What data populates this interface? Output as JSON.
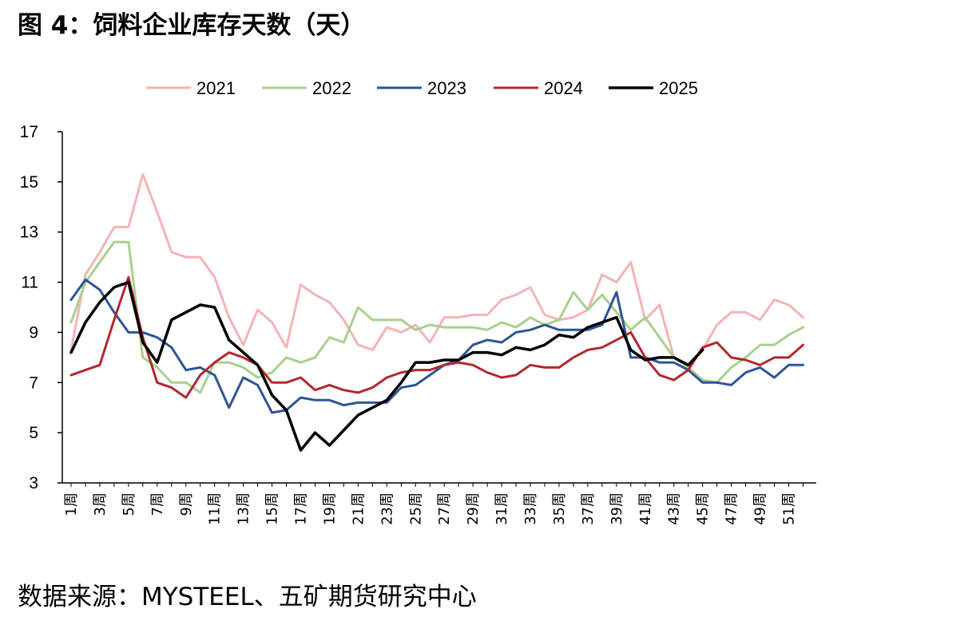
{
  "title": "图 4：饲料企业库存天数（天）",
  "source": "数据来源：MYSTEEL、五矿期货研究中心",
  "chart_data": {
    "type": "line",
    "ylim": [
      3,
      17
    ],
    "yticks": [
      "3",
      "5",
      "7",
      "9",
      "11",
      "13",
      "15",
      "17"
    ],
    "x": [
      1,
      2,
      3,
      4,
      5,
      6,
      7,
      8,
      9,
      10,
      11,
      12,
      13,
      14,
      15,
      16,
      17,
      18,
      19,
      20,
      21,
      22,
      23,
      24,
      25,
      26,
      27,
      28,
      29,
      30,
      31,
      32,
      33,
      34,
      35,
      36,
      37,
      38,
      39,
      40,
      41,
      42,
      43,
      44,
      45,
      46,
      47,
      48,
      49,
      50,
      51,
      52
    ],
    "xtick_labels": [
      "1周",
      "3周",
      "5周",
      "7周",
      "9周",
      "11周",
      "13周",
      "15周",
      "17周",
      "19周",
      "21周",
      "23周",
      "25周",
      "27周",
      "29周",
      "31周",
      "33周",
      "35周",
      "37周",
      "39周",
      "41周",
      "43周",
      "45周",
      "47周",
      "49周",
      "51周"
    ],
    "legend_position": "top",
    "grid": false,
    "series": [
      {
        "name": "2021",
        "color": "#f4b3b6",
        "width": 3,
        "values": [
          8.3,
          11.3,
          12.2,
          13.2,
          13.2,
          15.3,
          13.8,
          12.2,
          12.0,
          12.0,
          11.2,
          9.6,
          8.5,
          9.9,
          9.4,
          8.4,
          10.9,
          10.5,
          10.2,
          9.5,
          8.5,
          8.3,
          9.2,
          9.0,
          9.3,
          8.6,
          9.6,
          9.6,
          9.7,
          9.7,
          10.3,
          10.5,
          10.8,
          9.7,
          9.5,
          9.6,
          9.9,
          11.3,
          11.0,
          11.8,
          9.5,
          10.1,
          8.0,
          7.6,
          8.3,
          9.3,
          9.8,
          9.8,
          9.5,
          10.3,
          10.1,
          9.6
        ]
      },
      {
        "name": "2022",
        "color": "#a8d08d",
        "width": 3,
        "values": [
          9.4,
          11.0,
          11.8,
          12.6,
          12.6,
          8.0,
          7.6,
          7.0,
          7.0,
          6.6,
          7.8,
          7.8,
          7.6,
          7.2,
          7.4,
          8.0,
          7.8,
          8.0,
          8.8,
          8.6,
          10.0,
          9.5,
          9.5,
          9.5,
          9.1,
          9.3,
          9.2,
          9.2,
          9.2,
          9.1,
          9.4,
          9.2,
          9.6,
          9.3,
          9.5,
          10.6,
          9.9,
          10.5,
          9.8,
          9.1,
          9.6,
          8.8,
          8.0,
          7.6,
          7.1,
          7.0,
          7.6,
          8.0,
          8.5,
          8.5,
          8.9,
          9.2
        ]
      },
      {
        "name": "2023",
        "color": "#2e5597",
        "width": 3,
        "values": [
          10.3,
          11.1,
          10.7,
          9.8,
          9.0,
          9.0,
          8.8,
          8.4,
          7.5,
          7.6,
          7.3,
          6.0,
          7.2,
          6.9,
          5.8,
          5.9,
          6.4,
          6.3,
          6.3,
          6.1,
          6.2,
          6.2,
          6.2,
          6.8,
          6.9,
          7.3,
          7.7,
          7.9,
          8.5,
          8.7,
          8.6,
          9.0,
          9.1,
          9.3,
          9.1,
          9.1,
          9.1,
          9.3,
          10.6,
          8.0,
          8.0,
          7.8,
          7.8,
          7.5,
          7.0,
          7.0,
          6.9,
          7.4,
          7.6,
          7.2,
          7.7,
          7.7
        ]
      },
      {
        "name": "2024",
        "color": "#b2282e",
        "width": 3,
        "values": [
          7.3,
          7.5,
          7.7,
          9.5,
          11.2,
          8.8,
          7.0,
          6.8,
          6.4,
          7.3,
          7.8,
          8.2,
          8.0,
          7.7,
          7.0,
          7.0,
          7.2,
          6.7,
          6.9,
          6.7,
          6.6,
          6.8,
          7.2,
          7.4,
          7.5,
          7.5,
          7.7,
          7.8,
          7.7,
          7.4,
          7.2,
          7.3,
          7.7,
          7.6,
          7.6,
          8.0,
          8.3,
          8.4,
          8.7,
          9.0,
          8.0,
          7.3,
          7.1,
          7.5,
          8.4,
          8.6,
          8.0,
          7.9,
          7.7,
          8.0,
          8.0,
          8.5
        ]
      },
      {
        "name": "2025",
        "color": "#000000",
        "width": 3.5,
        "values": [
          8.2,
          9.4,
          10.2,
          10.8,
          11.0,
          8.6,
          7.8,
          9.5,
          9.8,
          10.1,
          10.0,
          8.7,
          8.2,
          7.7,
          6.5,
          5.9,
          4.3,
          5.0,
          4.5,
          5.1,
          5.7,
          6.0,
          6.3,
          7.0,
          7.8,
          7.8,
          7.9,
          7.9,
          8.2,
          8.2,
          8.1,
          8.4,
          8.3,
          8.5,
          8.9,
          8.8,
          9.2,
          9.4,
          9.6,
          8.3,
          7.9,
          8.0,
          8.0,
          7.7,
          8.3,
          null,
          null,
          null,
          null,
          null,
          null,
          null
        ]
      }
    ]
  }
}
